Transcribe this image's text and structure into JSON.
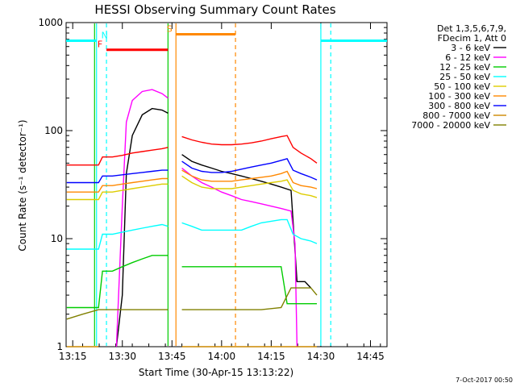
{
  "chart_data": {
    "type": "line",
    "title": "HESSI Observing Summary Count Rates",
    "xlabel": "Start Time (30-Apr-15 13:13:22)",
    "ylabel": "Count Rate (s⁻¹ detector⁻¹)",
    "x_ticks": [
      "13:15",
      "13:30",
      "13:45",
      "14:00",
      "14:15",
      "14:30",
      "14:45"
    ],
    "y_ticks": [
      "1",
      "10",
      "100",
      "1000"
    ],
    "y_scale": "log",
    "y_range": [
      1,
      1000
    ],
    "x_range_minutes": [
      13.2167,
      14.8333
    ],
    "legend_header": [
      "Det 1,3,5,6,7,9,",
      "FDecim 1, Att 0"
    ],
    "series": [
      {
        "name": "3 - 6 keV",
        "color": "#000000",
        "segments": [
          [
            [
              13.47,
              1.0
            ],
            [
              13.5,
              3
            ],
            [
              13.52,
              40
            ],
            [
              13.55,
              90
            ],
            [
              13.6,
              140
            ],
            [
              13.65,
              160
            ],
            [
              13.7,
              155
            ],
            [
              13.73,
              145
            ]
          ],
          [
            [
              13.8,
              60
            ],
            [
              13.85,
              52
            ],
            [
              13.9,
              48
            ],
            [
              13.95,
              45
            ],
            [
              14.0,
              42
            ],
            [
              14.05,
              40
            ],
            [
              14.1,
              38
            ],
            [
              14.15,
              36
            ],
            [
              14.2,
              34
            ],
            [
              14.25,
              32
            ],
            [
              14.3,
              30
            ],
            [
              14.35,
              28
            ],
            [
              14.38,
              4
            ],
            [
              14.42,
              4
            ],
            [
              14.45,
              3.5
            ]
          ]
        ]
      },
      {
        "name": "6 - 12 keV",
        "color": "#ff00ff",
        "segments": [
          [
            [
              13.47,
              1.0
            ],
            [
              13.5,
              20
            ],
            [
              13.52,
              120
            ],
            [
              13.55,
              190
            ],
            [
              13.6,
              230
            ],
            [
              13.65,
              240
            ],
            [
              13.7,
              220
            ],
            [
              13.73,
              200
            ]
          ],
          [
            [
              13.8,
              45
            ],
            [
              13.85,
              38
            ],
            [
              13.9,
              33
            ],
            [
              13.95,
              30
            ],
            [
              14.0,
              27
            ],
            [
              14.05,
              25
            ],
            [
              14.1,
              23
            ],
            [
              14.15,
              22
            ],
            [
              14.2,
              21
            ],
            [
              14.25,
              20
            ],
            [
              14.3,
              19
            ],
            [
              14.35,
              18
            ],
            [
              14.37,
              9
            ],
            [
              14.38,
              1.0
            ]
          ]
        ]
      },
      {
        "name": "12 - 25 keV",
        "color": "#00cc00",
        "segments": [
          [
            [
              13.22,
              2.3
            ],
            [
              13.3,
              2.3
            ],
            [
              13.38,
              2.3
            ],
            [
              13.4,
              5
            ],
            [
              13.45,
              5
            ],
            [
              13.5,
              5.5
            ],
            [
              13.55,
              6
            ],
            [
              13.6,
              6.5
            ],
            [
              13.65,
              7
            ],
            [
              13.7,
              7
            ],
            [
              13.73,
              7
            ]
          ],
          [
            [
              13.8,
              5.5
            ],
            [
              13.85,
              5.5
            ],
            [
              13.9,
              5.5
            ],
            [
              13.95,
              5.5
            ],
            [
              14.0,
              5.5
            ],
            [
              14.05,
              5.5
            ],
            [
              14.1,
              5.5
            ],
            [
              14.15,
              5.5
            ],
            [
              14.2,
              5.5
            ],
            [
              14.25,
              5.5
            ],
            [
              14.3,
              5.5
            ],
            [
              14.33,
              2.5
            ],
            [
              14.4,
              2.5
            ],
            [
              14.48,
              2.5
            ]
          ]
        ]
      },
      {
        "name": "25 - 50 keV",
        "color": "#00ffff",
        "segments": [
          [
            [
              13.22,
              8
            ],
            [
              13.28,
              8
            ],
            [
              13.34,
              8
            ],
            [
              13.38,
              8
            ],
            [
              13.4,
              11
            ],
            [
              13.45,
              11
            ],
            [
              13.5,
              11.5
            ],
            [
              13.55,
              12
            ],
            [
              13.6,
              12.5
            ],
            [
              13.65,
              13
            ],
            [
              13.7,
              13.5
            ],
            [
              13.73,
              13
            ]
          ],
          [
            [
              13.8,
              14
            ],
            [
              13.85,
              13
            ],
            [
              13.9,
              12
            ],
            [
              13.95,
              12
            ],
            [
              14.0,
              12
            ],
            [
              14.05,
              12
            ],
            [
              14.1,
              12
            ],
            [
              14.15,
              13
            ],
            [
              14.2,
              14
            ],
            [
              14.25,
              14.5
            ],
            [
              14.3,
              15
            ],
            [
              14.33,
              15
            ],
            [
              14.36,
              11
            ],
            [
              14.4,
              10
            ],
            [
              14.45,
              9.5
            ],
            [
              14.48,
              9
            ]
          ]
        ]
      },
      {
        "name": "50 - 100 keV",
        "color": "#ddcc00",
        "segments": [
          [
            [
              13.22,
              23
            ],
            [
              13.28,
              23
            ],
            [
              13.34,
              23
            ],
            [
              13.38,
              23
            ],
            [
              13.4,
              27
            ],
            [
              13.45,
              27
            ],
            [
              13.5,
              28
            ],
            [
              13.55,
              29
            ],
            [
              13.6,
              30
            ],
            [
              13.65,
              31
            ],
            [
              13.7,
              32
            ],
            [
              13.73,
              32
            ]
          ],
          [
            [
              13.8,
              38
            ],
            [
              13.85,
              33
            ],
            [
              13.9,
              30
            ],
            [
              13.95,
              29
            ],
            [
              14.0,
              29
            ],
            [
              14.05,
              29
            ],
            [
              14.1,
              30
            ],
            [
              14.15,
              31
            ],
            [
              14.2,
              32
            ],
            [
              14.25,
              33
            ],
            [
              14.3,
              34
            ],
            [
              14.33,
              35
            ],
            [
              14.36,
              28
            ],
            [
              14.4,
              26
            ],
            [
              14.45,
              25
            ],
            [
              14.48,
              24
            ]
          ]
        ]
      },
      {
        "name": "100 - 300 keV",
        "color": "#ff8800",
        "segments": [
          [
            [
              13.22,
              27
            ],
            [
              13.28,
              27
            ],
            [
              13.34,
              27
            ],
            [
              13.38,
              27
            ],
            [
              13.4,
              31
            ],
            [
              13.45,
              31
            ],
            [
              13.5,
              32
            ],
            [
              13.55,
              33
            ],
            [
              13.6,
              34
            ],
            [
              13.65,
              35
            ],
            [
              13.7,
              36
            ],
            [
              13.73,
              36
            ]
          ],
          [
            [
              13.8,
              43
            ],
            [
              13.85,
              38
            ],
            [
              13.9,
              35
            ],
            [
              13.95,
              34
            ],
            [
              14.0,
              34
            ],
            [
              14.05,
              34
            ],
            [
              14.1,
              35
            ],
            [
              14.15,
              36
            ],
            [
              14.2,
              37
            ],
            [
              14.25,
              38
            ],
            [
              14.3,
              40
            ],
            [
              14.33,
              42
            ],
            [
              14.36,
              33
            ],
            [
              14.4,
              31
            ],
            [
              14.45,
              30
            ],
            [
              14.48,
              29
            ]
          ]
        ]
      },
      {
        "name": "300 - 800 keV",
        "color": "#0000ff",
        "segments": [
          [
            [
              13.22,
              33
            ],
            [
              13.28,
              33
            ],
            [
              13.34,
              33
            ],
            [
              13.38,
              33
            ],
            [
              13.4,
              38
            ],
            [
              13.45,
              38
            ],
            [
              13.5,
              39
            ],
            [
              13.55,
              40
            ],
            [
              13.6,
              41
            ],
            [
              13.65,
              42
            ],
            [
              13.7,
              43
            ],
            [
              13.73,
              43
            ]
          ],
          [
            [
              13.8,
              52
            ],
            [
              13.85,
              45
            ],
            [
              13.9,
              42
            ],
            [
              13.95,
              41
            ],
            [
              14.0,
              41
            ],
            [
              14.05,
              42
            ],
            [
              14.1,
              44
            ],
            [
              14.15,
              46
            ],
            [
              14.2,
              48
            ],
            [
              14.25,
              50
            ],
            [
              14.3,
              53
            ],
            [
              14.33,
              55
            ],
            [
              14.36,
              43
            ],
            [
              14.4,
              40
            ],
            [
              14.45,
              37
            ],
            [
              14.48,
              35
            ]
          ]
        ]
      },
      {
        "name": "800 - 7000 keV",
        "color": "#cc8800",
        "segments": [
          [
            [
              13.22,
              0.5
            ],
            [
              13.38,
              0.5
            ]
          ],
          [
            [
              13.8,
              0.5
            ],
            [
              14.48,
              0.5
            ]
          ]
        ]
      },
      {
        "name": "7000 - 20000 keV",
        "color": "#808000",
        "segments": [
          [
            [
              13.22,
              1.8
            ],
            [
              13.3,
              2.0
            ],
            [
              13.38,
              2.2
            ],
            [
              13.45,
              2.2
            ],
            [
              13.55,
              2.2
            ],
            [
              13.65,
              2.2
            ],
            [
              13.73,
              2.2
            ]
          ],
          [
            [
              13.8,
              2.2
            ],
            [
              13.9,
              2.2
            ],
            [
              14.0,
              2.2
            ],
            [
              14.1,
              2.2
            ],
            [
              14.2,
              2.2
            ],
            [
              14.3,
              2.3
            ],
            [
              14.35,
              3.5
            ],
            [
              14.45,
              3.5
            ],
            [
              14.48,
              3.0
            ]
          ]
        ]
      }
    ],
    "red_extra": {
      "name": "red",
      "color": "#ff0000",
      "segments": [
        [
          [
            13.22,
            48
          ],
          [
            13.28,
            48
          ],
          [
            13.34,
            48
          ],
          [
            13.38,
            48
          ],
          [
            13.4,
            57
          ],
          [
            13.45,
            57
          ],
          [
            13.5,
            59
          ],
          [
            13.55,
            62
          ],
          [
            13.6,
            64
          ],
          [
            13.65,
            66
          ],
          [
            13.7,
            68
          ],
          [
            13.73,
            70
          ]
        ],
        [
          [
            13.8,
            88
          ],
          [
            13.85,
            82
          ],
          [
            13.9,
            78
          ],
          [
            13.95,
            75
          ],
          [
            14.0,
            74
          ],
          [
            14.05,
            74
          ],
          [
            14.1,
            75
          ],
          [
            14.15,
            77
          ],
          [
            14.2,
            80
          ],
          [
            14.25,
            84
          ],
          [
            14.3,
            88
          ],
          [
            14.33,
            90
          ],
          [
            14.36,
            70
          ],
          [
            14.4,
            62
          ],
          [
            14.45,
            55
          ],
          [
            14.48,
            50
          ]
        ]
      ]
    },
    "flag_bars": [
      {
        "label": "N",
        "color": "#00ffff",
        "label_color": "#00ffff",
        "x_start": 13.2167,
        "x_end": 13.37,
        "y": 680
      },
      {
        "label": "",
        "color": "#00ffff",
        "label_color": "#00ffff",
        "x_start": 14.5,
        "x_end": 14.8333,
        "y": 680
      },
      {
        "label": "F",
        "color": "#ff0000",
        "label_color": "#ff0000",
        "x_start": 13.42,
        "x_end": 13.73,
        "y": 560
      },
      {
        "label": "S",
        "color": "#ff8800",
        "label_color": "#ff8800",
        "x_start": 13.77,
        "x_end": 14.07,
        "y": 780
      }
    ],
    "vertical_lines": [
      {
        "x": 13.37,
        "color": "#00ffff",
        "style": "solid"
      },
      {
        "x": 13.42,
        "color": "#00ffff",
        "style": "dashed"
      },
      {
        "x": 13.73,
        "color": "#00cc00",
        "style": "solid"
      },
      {
        "x": 13.77,
        "color": "#ff8800",
        "style": "solid"
      },
      {
        "x": 14.07,
        "color": "#ff8800",
        "style": "dashed"
      },
      {
        "x": 14.5,
        "color": "#00ffff",
        "style": "solid"
      },
      {
        "x": 14.55,
        "color": "#00ffff",
        "style": "dashed"
      },
      {
        "x": 13.36,
        "color": "#00cc00",
        "style": "solid"
      }
    ]
  },
  "footer_date": "7-Oct-2017 00:50"
}
